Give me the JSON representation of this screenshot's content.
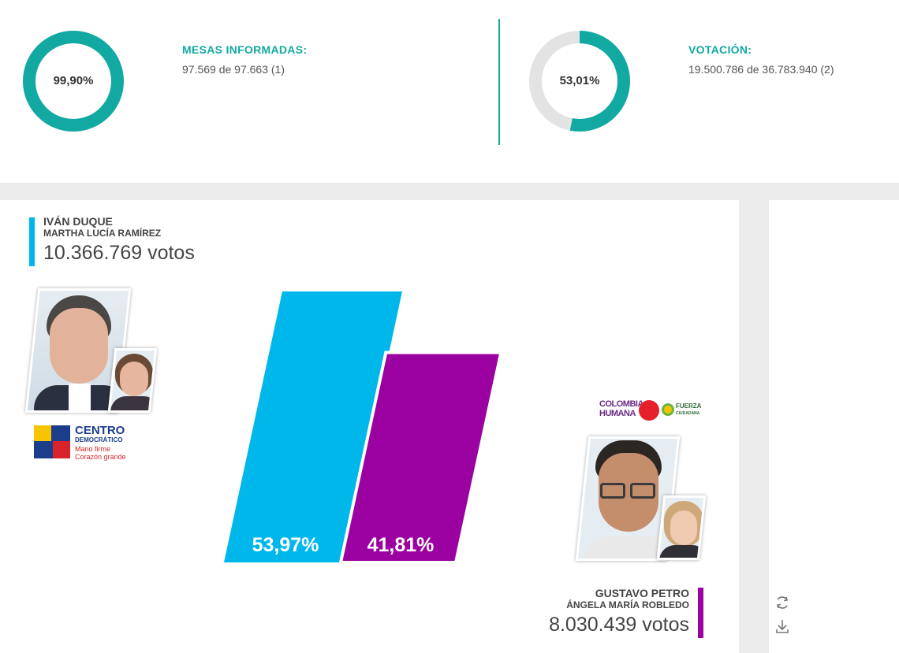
{
  "stats": {
    "mesas": {
      "percent_label": "99,90%",
      "percent": 99.9,
      "title": "MESAS INFORMADAS:",
      "detail": "97.569 de 97.663 (1)"
    },
    "votacion": {
      "percent_label": "53,01%",
      "percent": 53.01,
      "title": "VOTACIÓN:",
      "detail": "19.500.786 de 36.783.940 (2)"
    }
  },
  "colors": {
    "teal": "#12a9a2",
    "duque": "#00b7eb",
    "petro": "#9b00a0",
    "ring_bg": "#e3e3e3"
  },
  "candidates": {
    "duque": {
      "name": "IVÁN DUQUE",
      "vice": "MARTHA LUCÍA RAMÍREZ",
      "votes": "10.366.769 votos",
      "percent_label": "53,97%",
      "percent": 53.97,
      "party": {
        "line1": "CENTRO",
        "line2": "DEMOCRÁTICO",
        "line3": "Mano firme",
        "line4": "Corazón grande"
      }
    },
    "petro": {
      "name": "GUSTAVO PETRO",
      "vice": "ÁNGELA MARÍA ROBLEDO",
      "votes": "8.030.439 votos",
      "percent_label": "41,81%",
      "percent": 41.81,
      "party": {
        "line1": "COLOMBIA",
        "line2": "HUMANA",
        "line3": "FUERZA",
        "line4": "CIUDADANA"
      }
    }
  },
  "icons": {
    "refresh": "refresh-icon",
    "download": "download-icon"
  }
}
